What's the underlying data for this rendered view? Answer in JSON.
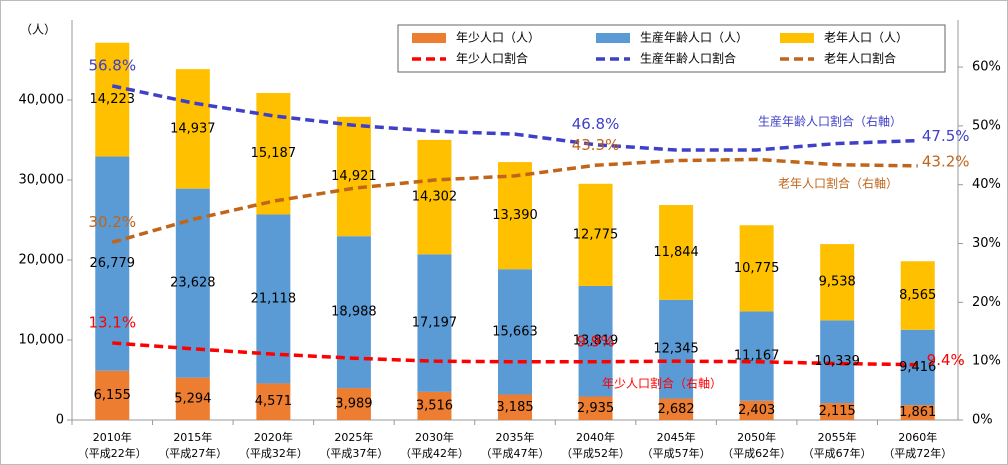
{
  "chart_data": {
    "type": "bar",
    "y_axis_label": "（人）",
    "categories": [
      "2010年",
      "2015年",
      "2020年",
      "2025年",
      "2030年",
      "2035年",
      "2040年",
      "2045年",
      "2050年",
      "2055年",
      "2060年"
    ],
    "category_sublabels": [
      "（平成22年）",
      "（平成27年）",
      "（平成32年）",
      "（平成37年）",
      "（平成42年）",
      "（平成47年）",
      "（平成52年）",
      "（平成57年）",
      "（平成62年）",
      "（平成67年）",
      "（平成72年）"
    ],
    "series": [
      {
        "name": "年少人口（人）",
        "color": "#ED7D31",
        "values": [
          6155,
          5294,
          4571,
          3989,
          3516,
          3185,
          2935,
          2682,
          2403,
          2115,
          1861
        ],
        "value_labels": [
          "6,155",
          "5,294",
          "4,571",
          "3,989",
          "3,516",
          "3,185",
          "2,935",
          "2,682",
          "2,403",
          "2,115",
          "1,861"
        ]
      },
      {
        "name": "生産年齢人口（人）",
        "color": "#5B9BD5",
        "values": [
          26779,
          23628,
          21118,
          18988,
          17197,
          15663,
          13819,
          12345,
          11167,
          10339,
          9416
        ],
        "value_labels": [
          "26,779",
          "23,628",
          "21,118",
          "18,988",
          "17,197",
          "15,663",
          "13,819",
          "12,345",
          "11,167",
          "10,339",
          "9,416"
        ]
      },
      {
        "name": "老年人口（人）",
        "color": "#FFC000",
        "values": [
          14223,
          14937,
          15187,
          14921,
          14302,
          13390,
          12775,
          11844,
          10775,
          9538,
          8565
        ],
        "value_labels": [
          "14,223",
          "14,937",
          "15,187",
          "14,921",
          "14,302",
          "13,390",
          "12,775",
          "11,844",
          "10,775",
          "9,538",
          "8,565"
        ]
      },
      {
        "name": "年少人口割合",
        "type": "line",
        "axis": "y2",
        "color": "#FF0000",
        "values": [
          13.1,
          12.1,
          11.2,
          10.5,
          10.0,
          9.9,
          9.9,
          10.0,
          9.9,
          9.6,
          9.4
        ],
        "value_labels": [
          "13.1%",
          null,
          null,
          null,
          null,
          null,
          "9.9%",
          null,
          null,
          null,
          "9.4%"
        ]
      },
      {
        "name": "生産年齢人口割合",
        "type": "line",
        "axis": "y2",
        "color": "#3F3FC8",
        "values": [
          56.8,
          53.9,
          51.7,
          50.1,
          49.1,
          48.6,
          46.8,
          45.9,
          45.9,
          47.0,
          47.5
        ],
        "value_labels": [
          "56.8%",
          null,
          null,
          null,
          null,
          null,
          "46.8%",
          null,
          null,
          null,
          "47.5%"
        ]
      },
      {
        "name": "老年人口割合",
        "type": "line",
        "axis": "y2",
        "color": "#C0651A",
        "values": [
          30.2,
          34.1,
          37.2,
          39.4,
          40.8,
          41.5,
          43.3,
          44.1,
          44.3,
          43.4,
          43.2
        ],
        "value_labels": [
          "30.2%",
          null,
          null,
          null,
          null,
          null,
          "43.3%",
          null,
          null,
          null,
          "43.2%"
        ]
      }
    ],
    "annotations": [
      {
        "text": "年少人口割合（右軸）",
        "series": 3
      },
      {
        "text": "生産年齢人口割合（右軸）",
        "series": 4
      },
      {
        "text": "老年人口割合（右軸）",
        "series": 5
      }
    ],
    "ylim": [
      0,
      50000
    ],
    "yticks": [
      0,
      {
        "value": 10000,
        "label": "10,000"
      },
      {
        "value": 20000,
        "label": "20,000"
      },
      {
        "value": 30000,
        "label": "30,000"
      },
      {
        "value": 40000,
        "label": "40,000"
      }
    ],
    "y2lim": [
      0,
      68
    ],
    "y2ticks": [
      {
        "value": 0,
        "label": "0%"
      },
      {
        "value": 10,
        "label": "10%"
      },
      {
        "value": 20,
        "label": "20%"
      },
      {
        "value": 30,
        "label": "30%"
      },
      {
        "value": 40,
        "label": "40%"
      },
      {
        "value": 50,
        "label": "50%"
      },
      {
        "value": 60,
        "label": "60%"
      }
    ],
    "legend": "top-right"
  }
}
